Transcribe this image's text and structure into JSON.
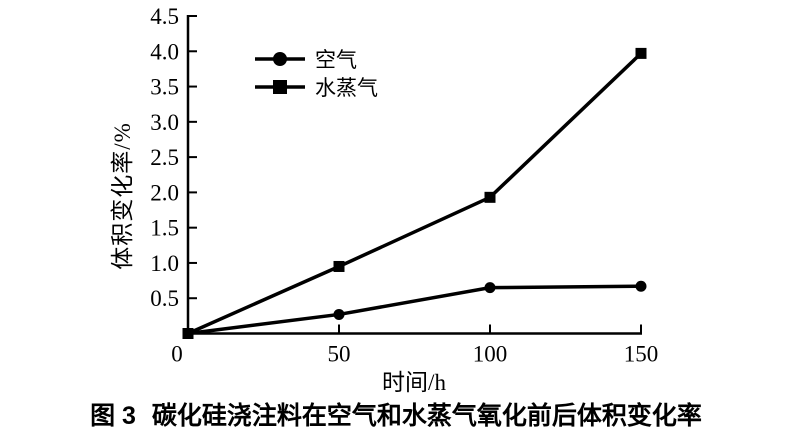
{
  "figure": {
    "background": "#ffffff",
    "ink_color": "#000000"
  },
  "chart_data": {
    "type": "line",
    "title": "",
    "xlabel": "时间/h",
    "ylabel": "体积变化率/%",
    "xlim": [
      0,
      150
    ],
    "ylim": [
      0,
      4.5
    ],
    "x_ticks": [
      0,
      50,
      100,
      150
    ],
    "y_ticks": [
      0.5,
      1.0,
      1.5,
      2.0,
      2.5,
      3.0,
      3.5,
      4.0,
      4.5
    ],
    "grid": false,
    "legend_position": "upper-left-inside",
    "x": [
      0,
      50,
      100,
      150
    ],
    "series": [
      {
        "name": "空气",
        "marker": "circle",
        "color": "#000000",
        "values": [
          0,
          0.27,
          0.65,
          0.67
        ]
      },
      {
        "name": "水蒸气",
        "marker": "square",
        "color": "#000000",
        "values": [
          0,
          0.95,
          1.93,
          3.97
        ]
      }
    ]
  },
  "caption": {
    "prefix": "图 3",
    "text": "碳化硅浇注料在空气和水蒸气氧化前后体积变化率"
  }
}
